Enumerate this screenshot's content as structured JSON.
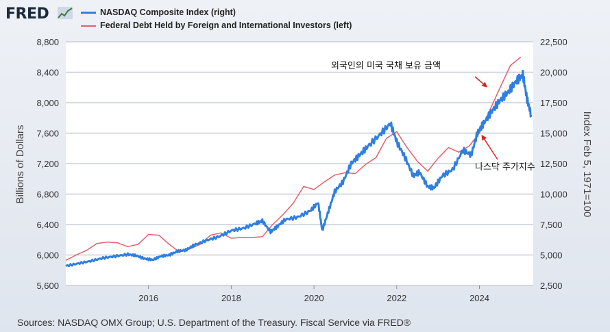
{
  "header": {
    "logo_text": "FRED",
    "legend": [
      {
        "label": "NASDAQ Composite Index (right)",
        "color": "#2f7fe0"
      },
      {
        "label": "Federal Debt Held by Foreign and International Investors (left)",
        "color": "#e0606a"
      }
    ]
  },
  "footer": {
    "source": "Sources: NASDAQ OMX Group; U.S. Department of the Treasury. Fiscal Service via FRED®"
  },
  "chart_data": {
    "type": "line",
    "title": "",
    "xlabel": "",
    "ylabel_left": "Billions of Dollars",
    "ylabel_right": "Index Feb 5, 1971=100",
    "xlim": [
      2014.0,
      2025.3
    ],
    "ylim_left": [
      5600,
      8800
    ],
    "ylim_right": [
      2500,
      22500
    ],
    "x_ticks": [
      "2016",
      "2018",
      "2020",
      "2022",
      "2024"
    ],
    "y_ticks_left": [
      "5,600",
      "6,000",
      "6,400",
      "6,800",
      "7,200",
      "7,600",
      "8,000",
      "8,400",
      "8,800"
    ],
    "y_ticks_right": [
      "2,500",
      "5,000",
      "7,500",
      "10,000",
      "12,500",
      "15,000",
      "17,500",
      "20,000",
      "22,500"
    ],
    "grid": true,
    "series": [
      {
        "name": "NASDAQ Composite Index (right)",
        "axis": "right",
        "color": "#2f7fe0",
        "x": [
          2014.0,
          2014.3,
          2014.6,
          2014.9,
          2015.2,
          2015.5,
          2015.7,
          2015.9,
          2016.1,
          2016.3,
          2016.5,
          2016.7,
          2016.9,
          2017.1,
          2017.4,
          2017.7,
          2018.0,
          2018.3,
          2018.6,
          2018.75,
          2018.95,
          2019.1,
          2019.3,
          2019.6,
          2019.9,
          2020.1,
          2020.2,
          2020.35,
          2020.5,
          2020.7,
          2020.9,
          2021.1,
          2021.3,
          2021.6,
          2021.85,
          2022.0,
          2022.2,
          2022.4,
          2022.55,
          2022.75,
          2022.9,
          2023.1,
          2023.35,
          2023.6,
          2023.8,
          2023.95,
          2024.1,
          2024.3,
          2024.5,
          2024.7,
          2024.9,
          2025.05,
          2025.15,
          2025.25
        ],
        "y": [
          4100,
          4300,
          4500,
          4750,
          4900,
          5050,
          4950,
          4700,
          4600,
          4900,
          5000,
          5300,
          5400,
          5800,
          6200,
          6500,
          7000,
          7200,
          7600,
          7800,
          6900,
          7300,
          7900,
          8100,
          8600,
          9300,
          7000,
          8600,
          10200,
          11000,
          12500,
          13200,
          13900,
          14900,
          15800,
          14300,
          13000,
          11500,
          11800,
          10600,
          10500,
          11500,
          12000,
          13600,
          13200,
          15000,
          15800,
          16800,
          17700,
          18400,
          19300,
          19800,
          17800,
          16500
        ]
      },
      {
        "name": "Federal Debt Held by Foreign and International Investors (left)",
        "axis": "left",
        "color": "#e0606a",
        "x": [
          2014.0,
          2014.25,
          2014.5,
          2014.75,
          2015.0,
          2015.25,
          2015.5,
          2015.75,
          2016.0,
          2016.25,
          2016.5,
          2016.75,
          2017.0,
          2017.25,
          2017.5,
          2017.75,
          2018.0,
          2018.25,
          2018.5,
          2018.75,
          2019.0,
          2019.25,
          2019.5,
          2019.75,
          2020.0,
          2020.25,
          2020.5,
          2020.75,
          2021.0,
          2021.25,
          2021.5,
          2021.75,
          2022.0,
          2022.25,
          2022.5,
          2022.75,
          2023.0,
          2023.25,
          2023.5,
          2023.75,
          2024.0,
          2024.25,
          2024.5,
          2024.75,
          2025.0
        ],
        "y": [
          5930,
          6000,
          6060,
          6150,
          6170,
          6160,
          6110,
          6140,
          6270,
          6260,
          6140,
          6040,
          6080,
          6140,
          6260,
          6290,
          6220,
          6230,
          6230,
          6240,
          6400,
          6530,
          6680,
          6900,
          6860,
          6960,
          7050,
          7080,
          7070,
          7190,
          7280,
          7530,
          7620,
          7410,
          7230,
          7100,
          7270,
          7410,
          7350,
          7430,
          7600,
          7900,
          8200,
          8490,
          8600
        ]
      }
    ],
    "annotations": [
      {
        "text": "외국인의 미국 국채 보유 금액",
        "target_series": 1,
        "target_x": 2024.2,
        "target_y": 8230
      },
      {
        "text": "나스닥 주가지수",
        "target_series": 0,
        "target_x": 2024.1,
        "target_y": 15000
      }
    ]
  }
}
